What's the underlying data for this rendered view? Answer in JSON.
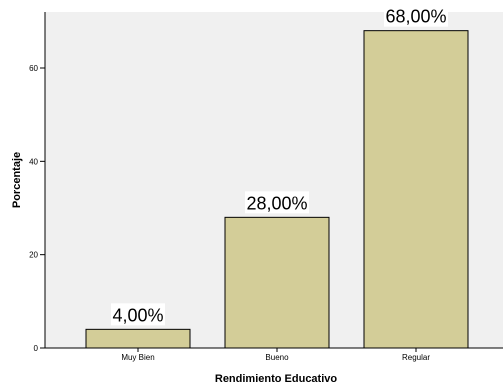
{
  "chart_data": {
    "type": "bar",
    "categories": [
      "Muy Bien",
      "Bueno",
      "Regular"
    ],
    "values": [
      4,
      28,
      68
    ],
    "data_labels": [
      "4,00%",
      "28,00%",
      "68,00%"
    ],
    "xlabel": "Rendimiento Educativo",
    "ylabel": "Porcentaje",
    "ylim": [
      0,
      72
    ],
    "yticks": [
      0,
      20,
      40,
      60
    ],
    "grid": false,
    "colors": {
      "bar_fill": "#d3cd98",
      "bar_stroke": "#000000",
      "plot_background": "#f0f0f0",
      "label_background": "#ffffff"
    }
  }
}
